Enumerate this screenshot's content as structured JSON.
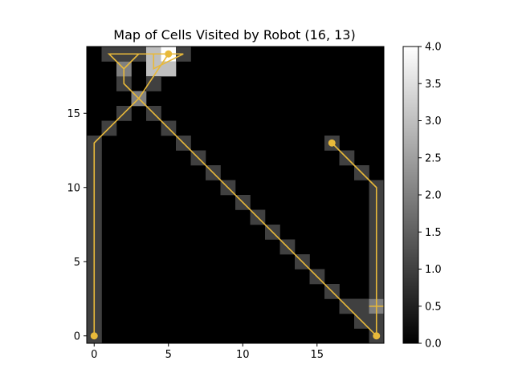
{
  "chart_data": {
    "type": "heatmap",
    "title": "Map of Cells Visited by Robot (16, 13)",
    "xlim": [
      -0.5,
      19.5
    ],
    "ylim": [
      -0.5,
      19.5
    ],
    "x_ticks": [
      0,
      5,
      10,
      15
    ],
    "x_tick_labels": [
      "0",
      "5",
      "10",
      "15"
    ],
    "y_ticks": [
      0,
      5,
      10,
      15
    ],
    "y_tick_labels": [
      "0",
      "5",
      "10",
      "15"
    ],
    "colormap": "gray",
    "clim": [
      0,
      4
    ],
    "colorbar_ticks": [
      0.0,
      0.5,
      1.0,
      1.5,
      2.0,
      2.5,
      3.0,
      3.5,
      4.0
    ],
    "colorbar_tick_labels": [
      "0.0",
      "0.5",
      "1.0",
      "1.5",
      "2.0",
      "2.5",
      "3.0",
      "3.5",
      "4.0"
    ],
    "grid": false,
    "cells": [
      {
        "x": 0,
        "y": 0,
        "v": 1
      },
      {
        "x": 0,
        "y": 1,
        "v": 1
      },
      {
        "x": 0,
        "y": 2,
        "v": 1
      },
      {
        "x": 0,
        "y": 3,
        "v": 1
      },
      {
        "x": 0,
        "y": 4,
        "v": 1
      },
      {
        "x": 0,
        "y": 5,
        "v": 1
      },
      {
        "x": 0,
        "y": 6,
        "v": 1
      },
      {
        "x": 0,
        "y": 7,
        "v": 1
      },
      {
        "x": 0,
        "y": 8,
        "v": 1
      },
      {
        "x": 0,
        "y": 9,
        "v": 1
      },
      {
        "x": 0,
        "y": 10,
        "v": 1
      },
      {
        "x": 0,
        "y": 11,
        "v": 1
      },
      {
        "x": 0,
        "y": 12,
        "v": 1
      },
      {
        "x": 0,
        "y": 13,
        "v": 1
      },
      {
        "x": 1,
        "y": 14,
        "v": 1
      },
      {
        "x": 2,
        "y": 15,
        "v": 1
      },
      {
        "x": 3,
        "y": 16,
        "v": 2
      },
      {
        "x": 2,
        "y": 17,
        "v": 1
      },
      {
        "x": 2,
        "y": 18,
        "v": 2
      },
      {
        "x": 1,
        "y": 19,
        "v": 1
      },
      {
        "x": 2,
        "y": 19,
        "v": 1
      },
      {
        "x": 3,
        "y": 19,
        "v": 1
      },
      {
        "x": 4,
        "y": 18,
        "v": 3
      },
      {
        "x": 4,
        "y": 19,
        "v": 3
      },
      {
        "x": 5,
        "y": 19,
        "v": 4
      },
      {
        "x": 5,
        "y": 18,
        "v": 3
      },
      {
        "x": 6,
        "y": 19,
        "v": 1
      },
      {
        "x": 4,
        "y": 17,
        "v": 1
      },
      {
        "x": 4,
        "y": 15,
        "v": 1
      },
      {
        "x": 5,
        "y": 14,
        "v": 1
      },
      {
        "x": 6,
        "y": 13,
        "v": 1
      },
      {
        "x": 7,
        "y": 12,
        "v": 1
      },
      {
        "x": 8,
        "y": 11,
        "v": 1
      },
      {
        "x": 9,
        "y": 10,
        "v": 1
      },
      {
        "x": 10,
        "y": 9,
        "v": 1
      },
      {
        "x": 11,
        "y": 8,
        "v": 1
      },
      {
        "x": 12,
        "y": 7,
        "v": 1
      },
      {
        "x": 13,
        "y": 6,
        "v": 1
      },
      {
        "x": 14,
        "y": 5,
        "v": 1
      },
      {
        "x": 15,
        "y": 4,
        "v": 1
      },
      {
        "x": 16,
        "y": 3,
        "v": 1
      },
      {
        "x": 17,
        "y": 2,
        "v": 1
      },
      {
        "x": 18,
        "y": 1,
        "v": 1
      },
      {
        "x": 17,
        "y": 2,
        "v": 1
      },
      {
        "x": 18,
        "y": 2,
        "v": 1
      },
      {
        "x": 19,
        "y": 2,
        "v": 2
      },
      {
        "x": 19,
        "y": 0,
        "v": 1
      },
      {
        "x": 19,
        "y": 1,
        "v": 1
      },
      {
        "x": 19,
        "y": 3,
        "v": 1
      },
      {
        "x": 19,
        "y": 4,
        "v": 1
      },
      {
        "x": 19,
        "y": 5,
        "v": 1
      },
      {
        "x": 19,
        "y": 6,
        "v": 1
      },
      {
        "x": 19,
        "y": 7,
        "v": 1
      },
      {
        "x": 19,
        "y": 8,
        "v": 1
      },
      {
        "x": 19,
        "y": 9,
        "v": 1
      },
      {
        "x": 19,
        "y": 10,
        "v": 1
      },
      {
        "x": 18,
        "y": 11,
        "v": 1
      },
      {
        "x": 17,
        "y": 12,
        "v": 1
      },
      {
        "x": 16,
        "y": 13,
        "v": 1
      }
    ],
    "path": {
      "color": "#e8b93a",
      "points": [
        [
          0,
          0
        ],
        [
          0,
          13
        ],
        [
          3,
          16
        ],
        [
          2,
          17
        ],
        [
          2,
          18
        ],
        [
          1,
          19
        ],
        [
          3,
          19
        ],
        [
          2,
          18
        ],
        [
          3,
          19
        ],
        [
          6,
          19
        ],
        [
          4,
          18
        ],
        [
          4,
          19
        ],
        [
          5,
          19
        ],
        [
          3,
          16
        ],
        [
          19,
          0
        ],
        [
          19,
          10
        ],
        [
          16,
          13
        ]
      ],
      "extra_segment": [
        [
          18.5,
          2
        ],
        [
          19.5,
          2
        ]
      ],
      "markers": [
        [
          0,
          0
        ],
        [
          5,
          19
        ],
        [
          19,
          0
        ],
        [
          16,
          13
        ]
      ]
    }
  }
}
